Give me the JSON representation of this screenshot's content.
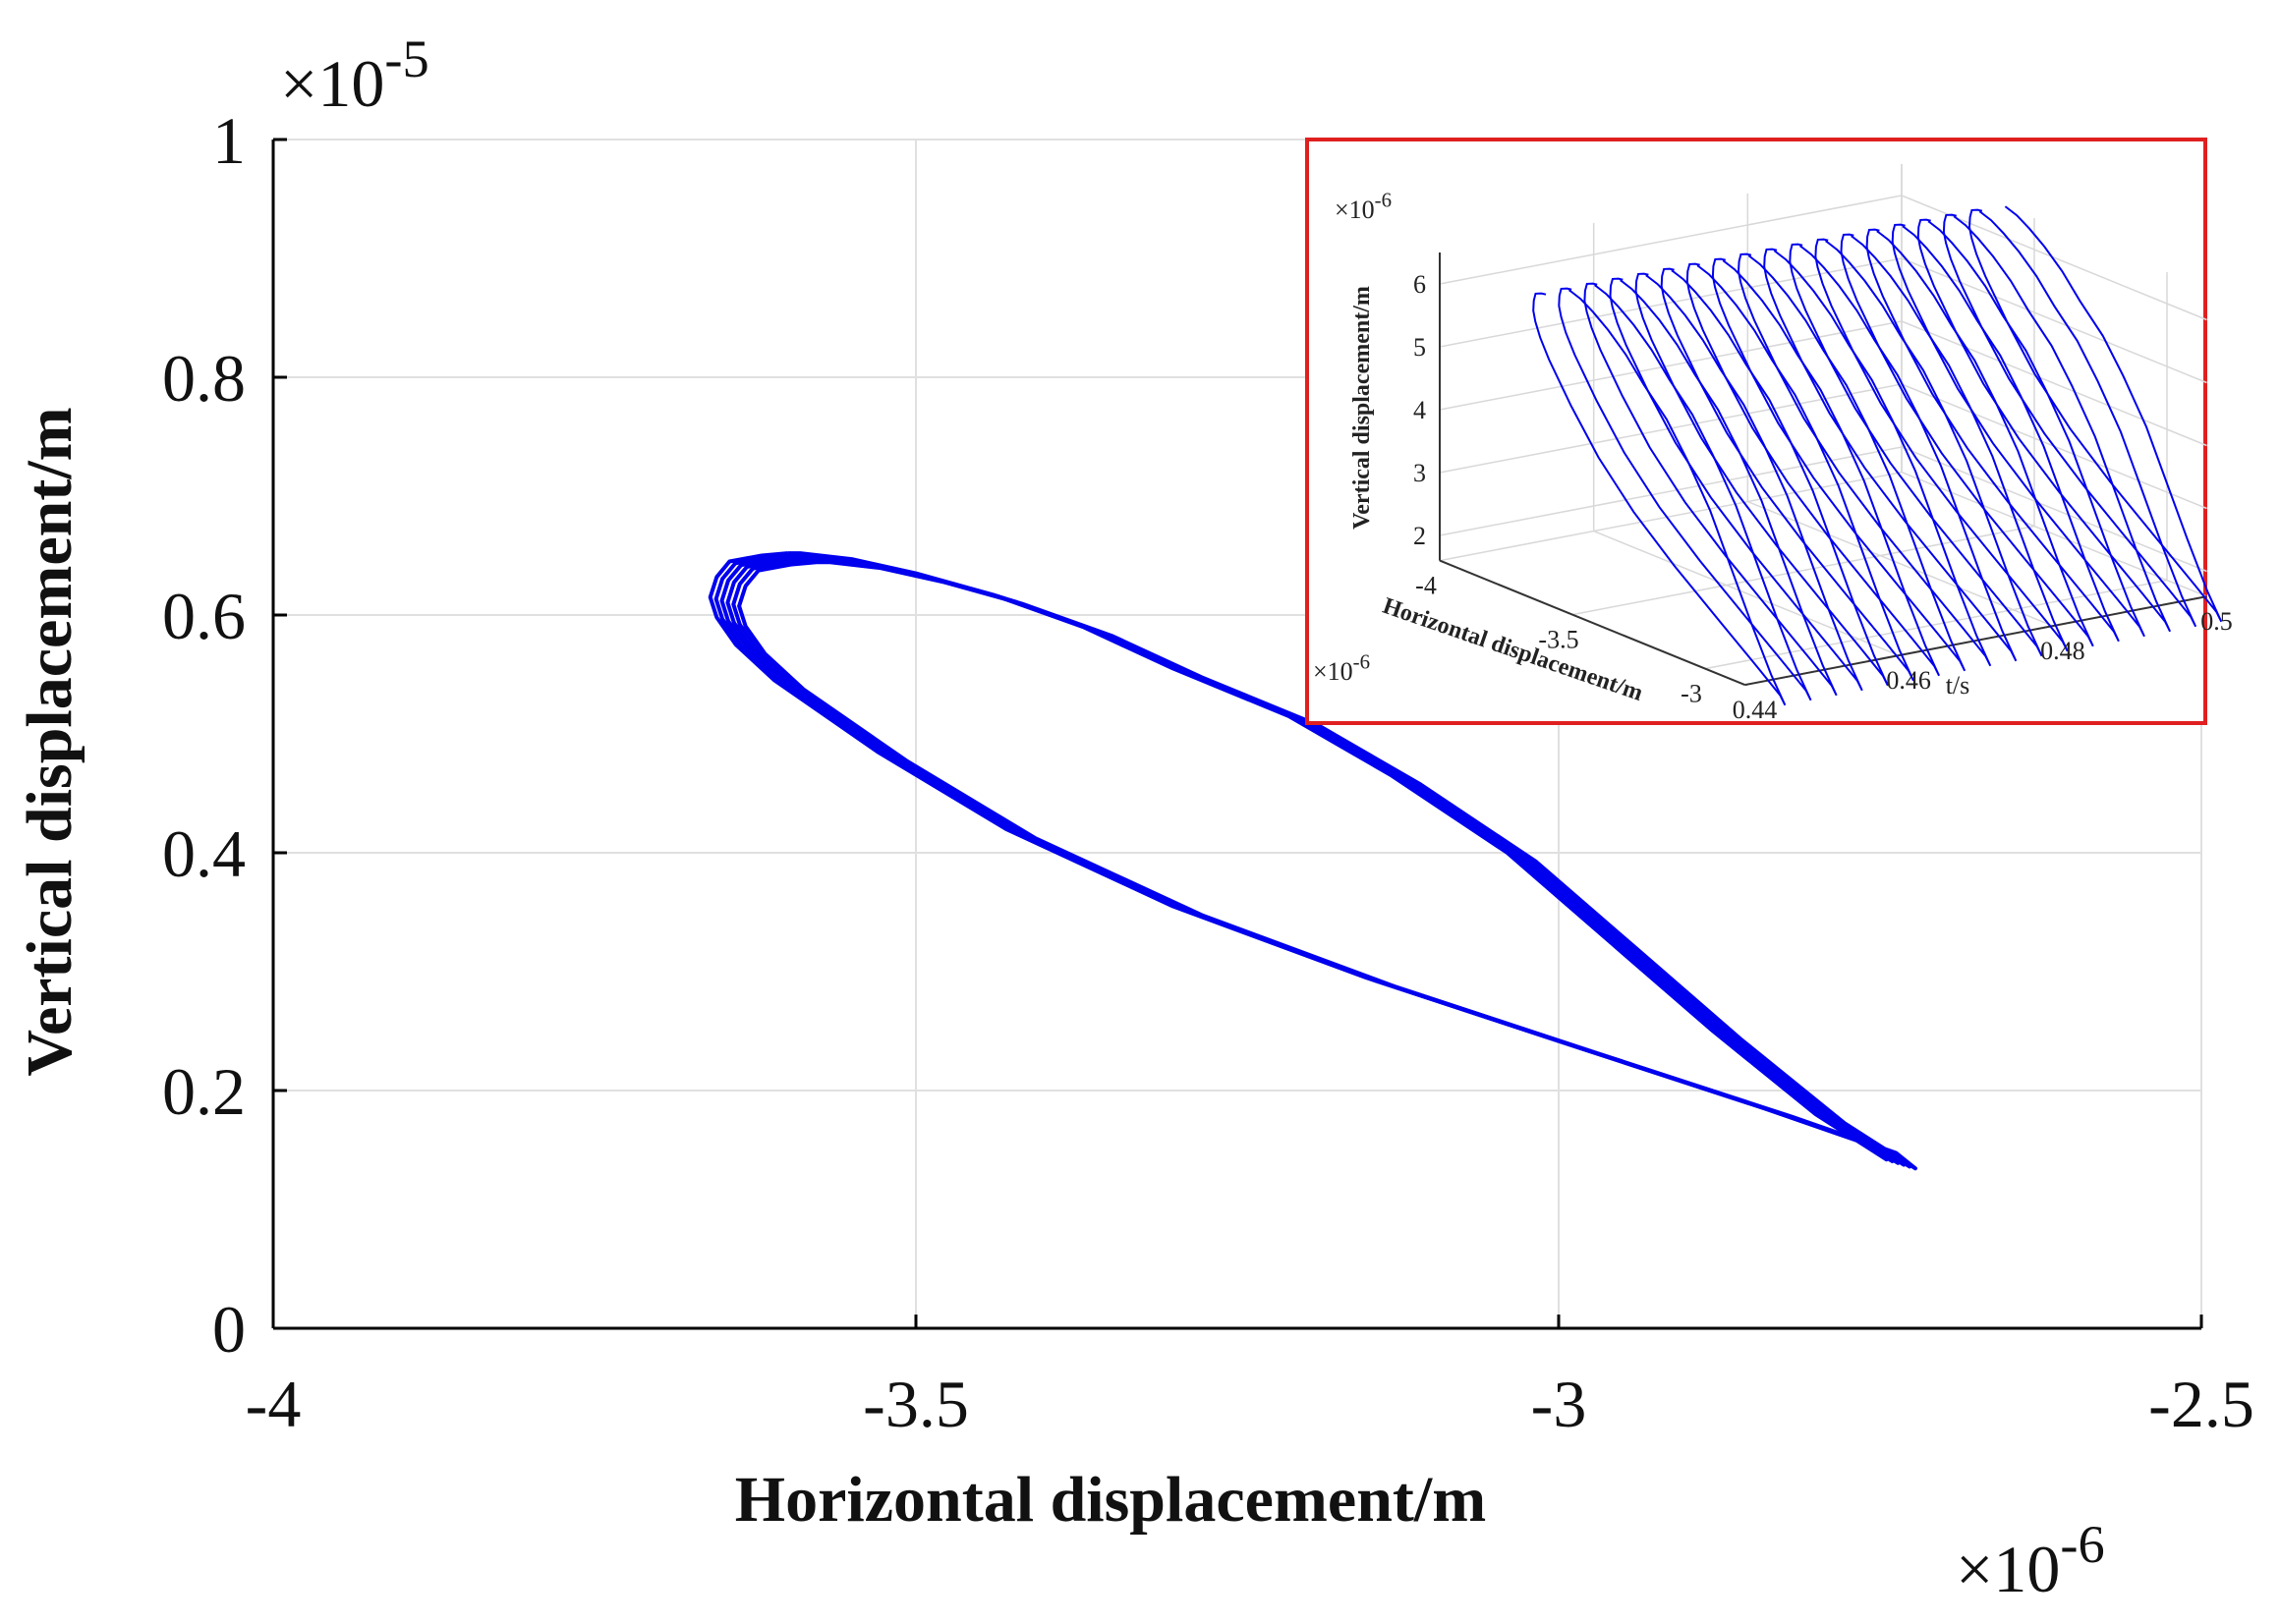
{
  "colors": {
    "series": "#0000ee",
    "grid": "#e0e0e0",
    "axis": "#000000",
    "inset_border": "#e02020"
  },
  "chart_data": [
    {
      "type": "line",
      "xlabel": "Horizontal displacement/m",
      "ylabel": "Vertical displacement/m",
      "x_multiplier": "×10-6",
      "y_multiplier": "×10-5",
      "xlim": [
        -4,
        -2.5
      ],
      "ylim": [
        0,
        1
      ],
      "x_ticks": [
        -4,
        -3.5,
        -3,
        -2.5
      ],
      "x_tick_labels": [
        "-4",
        "-3.5",
        "-3",
        "-2.5"
      ],
      "y_ticks": [
        0,
        0.2,
        0.4,
        0.6,
        0.8,
        1
      ],
      "y_tick_labels": [
        "0",
        "0.2",
        "0.4",
        "0.6",
        "0.8",
        "1"
      ],
      "grid": true,
      "loop_copies": 6,
      "loop_shift": [
        0.0045,
        -0.0015
      ],
      "series": [
        {
          "x": [
            -3.6,
            -3.62,
            -3.645,
            -3.655,
            -3.66,
            -3.655,
            -3.64,
            -3.61,
            -3.53,
            -3.43,
            -3.3,
            -3.15,
            -2.99,
            -2.84,
            -2.76,
            -2.745,
            -2.8,
            -2.88,
            -2.96,
            -3.04,
            -3.13,
            -3.21,
            -3.3,
            -3.37,
            -3.44,
            -3.5,
            -3.55,
            -3.59,
            -3.6
          ],
          "y": [
            0.652,
            0.65,
            0.645,
            0.632,
            0.615,
            0.598,
            0.575,
            0.545,
            0.485,
            0.42,
            0.355,
            0.295,
            0.238,
            0.185,
            0.155,
            0.142,
            0.18,
            0.25,
            0.325,
            0.4,
            0.465,
            0.515,
            0.555,
            0.59,
            0.617,
            0.635,
            0.647,
            0.652,
            0.652
          ]
        }
      ]
    },
    {
      "type": "line",
      "view": "3d",
      "xlabel": "Horizontal displacement/m",
      "ylabel": "t/s",
      "zlabel": "Vertical displacement/m",
      "x_multiplier": "×10-6",
      "z_multiplier": "×10-6",
      "x_ticks": [
        -4,
        -3.5,
        -3
      ],
      "x_tick_labels": [
        "-4",
        "-3.5",
        "-3"
      ],
      "t_ticks": [
        0.44,
        0.46,
        0.48,
        0.5
      ],
      "t_tick_labels": [
        "0.44",
        "0.46",
        "0.48",
        "0.5"
      ],
      "z_ticks": [
        2,
        3,
        4,
        5,
        6
      ],
      "z_tick_labels": [
        "2",
        "3",
        "4",
        "5",
        "6"
      ],
      "t_range": [
        0.44,
        0.5
      ],
      "loops": 18
    }
  ]
}
